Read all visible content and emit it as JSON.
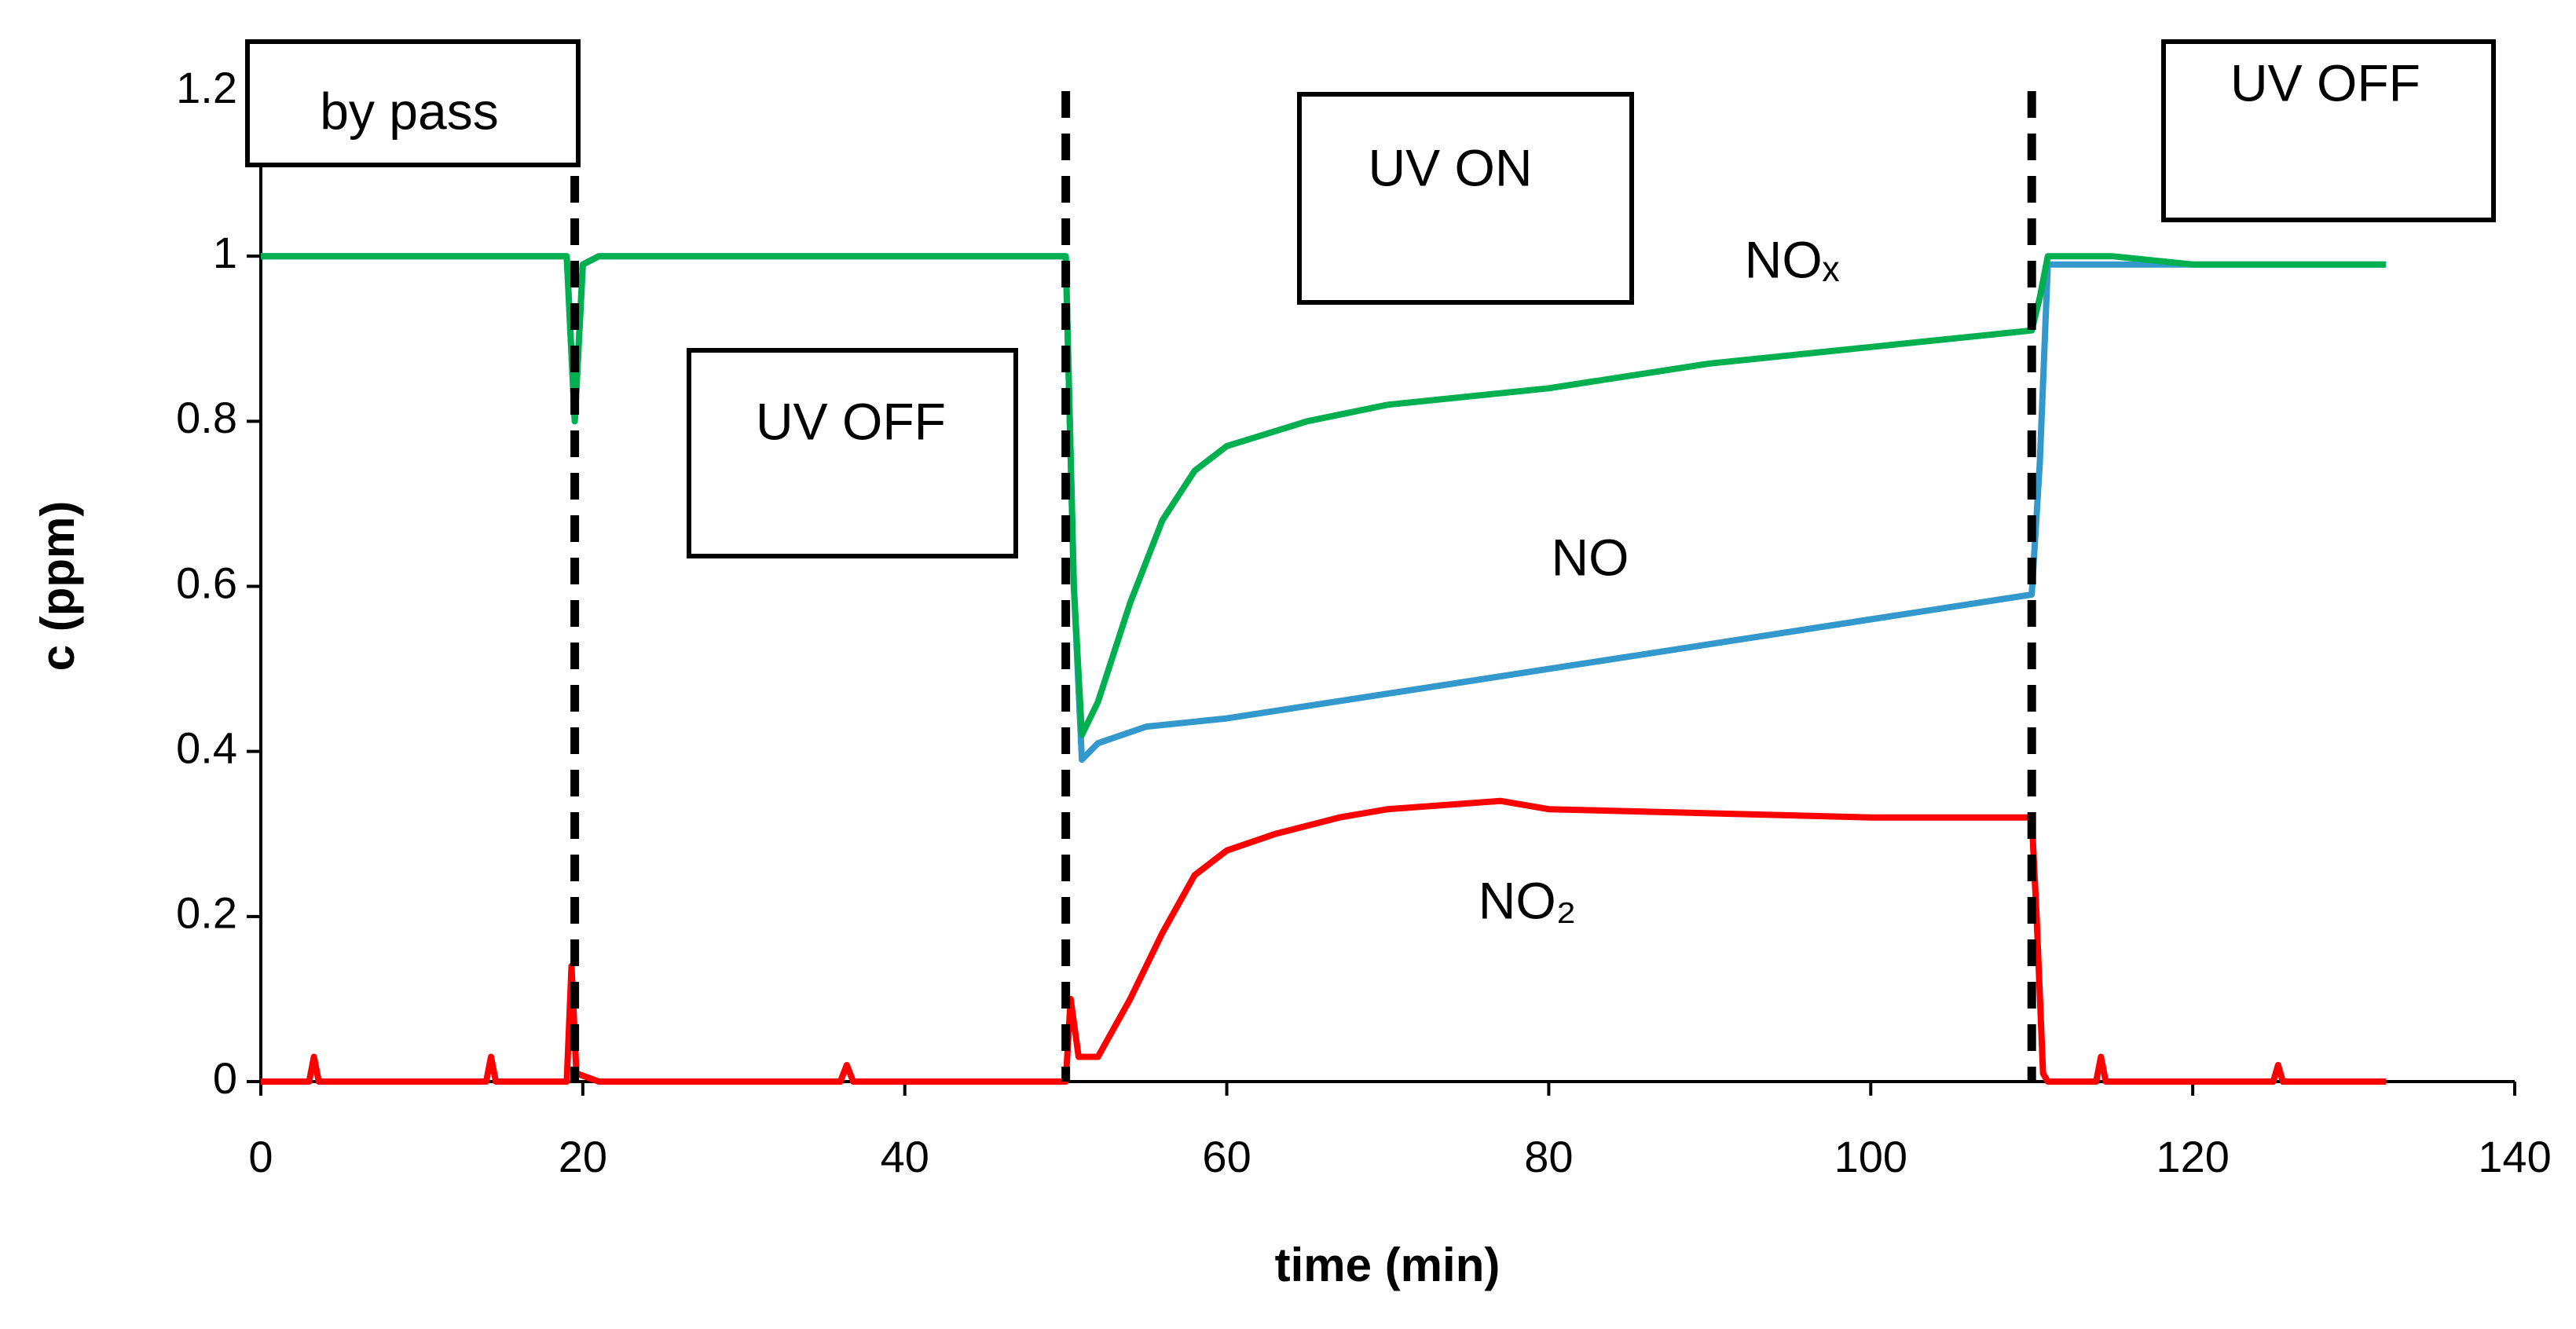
{
  "chart_data": {
    "type": "line",
    "x_label": "time (min)",
    "y_label": "c (ppm)",
    "xlim": [
      0,
      140
    ],
    "ylim": [
      0,
      1.2
    ],
    "xticks": [
      0,
      20,
      40,
      60,
      80,
      100,
      120,
      140
    ],
    "yticks": [
      0,
      0.2,
      0.4,
      0.6,
      0.8,
      1,
      1.2
    ],
    "vlines": [
      19.5,
      50,
      110
    ],
    "annotations": [
      "by pass",
      "UV OFF",
      "UV ON",
      "UV OFF"
    ],
    "series": [
      {
        "name": "NO₂",
        "color": "#ff0000",
        "x": [
          0,
          3,
          3.3,
          3.6,
          14,
          14.3,
          14.6,
          19,
          19.3,
          19.6,
          21,
          36,
          36.4,
          36.8,
          50,
          50.3,
          50.8,
          52,
          54,
          56,
          58,
          60,
          63,
          67,
          70,
          77,
          80,
          100,
          110,
          110.3,
          110.7,
          111,
          114,
          114.3,
          114.6,
          125,
          125.3,
          125.6,
          132
        ],
        "values": [
          0,
          0,
          0.03,
          0,
          0,
          0.03,
          0,
          0,
          0.14,
          0.01,
          0,
          0,
          0.02,
          0,
          0,
          0.1,
          0.03,
          0.03,
          0.1,
          0.18,
          0.25,
          0.28,
          0.3,
          0.32,
          0.33,
          0.34,
          0.33,
          0.32,
          0.32,
          0.2,
          0.01,
          0,
          0,
          0.03,
          0,
          0,
          0.02,
          0,
          0
        ]
      },
      {
        "name": "NO",
        "color": "#3399cc",
        "x": [
          0,
          19,
          19.5,
          20,
          21,
          50,
          50.5,
          51,
          52,
          55,
          60,
          70,
          80,
          90,
          100,
          110,
          110.5,
          111,
          115,
          132
        ],
        "values": [
          1,
          1,
          0.8,
          0.99,
          1,
          1,
          0.6,
          0.39,
          0.41,
          0.43,
          0.44,
          0.47,
          0.5,
          0.53,
          0.56,
          0.59,
          0.75,
          0.99,
          0.99,
          0.99
        ]
      },
      {
        "name": "NOₓ",
        "color": "#00b050",
        "x": [
          0,
          3,
          14,
          19,
          19.5,
          20,
          21,
          30,
          50,
          50.5,
          51,
          52,
          54,
          56,
          58,
          60,
          65,
          70,
          80,
          90,
          100,
          110,
          110.5,
          111,
          115,
          120,
          125,
          132
        ],
        "values": [
          1,
          1,
          1,
          1,
          0.8,
          0.99,
          1,
          1,
          1,
          0.6,
          0.42,
          0.46,
          0.58,
          0.68,
          0.74,
          0.77,
          0.8,
          0.82,
          0.84,
          0.87,
          0.89,
          0.91,
          0.95,
          1,
          1,
          0.99,
          0.99,
          0.99
        ]
      }
    ]
  }
}
